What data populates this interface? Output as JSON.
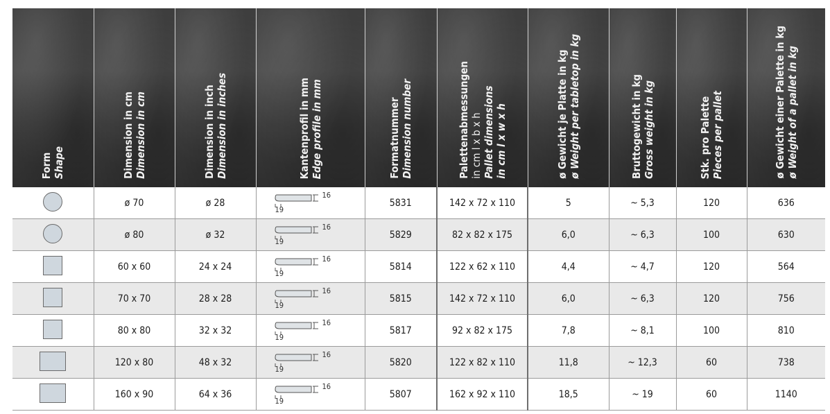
{
  "headers": [
    {
      "de": "Form",
      "en": "Shape"
    },
    {
      "de": "Dimension in cm",
      "en": "Dimension in cm"
    },
    {
      "de": "Dimension in inch",
      "en": "Dimension in inches"
    },
    {
      "de": "Kantenprofil in mm",
      "en": "Edge profile in mm"
    },
    {
      "de": "Formatnummer",
      "en": "Dimension number"
    },
    {
      "de": "Palettenabmessungen",
      "de2": "in cm l x b x h",
      "en": "Pallet dimensions",
      "en2": "in cm l x w x h"
    },
    {
      "de": "ø Gewicht je Platte in kg",
      "en": "ø Weight per tabletop in kg"
    },
    {
      "de": "Bruttogewicht in kg",
      "en": "Gross weight in kg"
    },
    {
      "de": "Stk. pro Palette",
      "en": "Pieces per pallet"
    },
    {
      "de": "ø Gewicht einer Palette in kg",
      "en": "ø Weight of a pallet in kg"
    }
  ],
  "edge_profile": {
    "thickness": "16",
    "rim": "19"
  },
  "rows": [
    {
      "shape": "circle",
      "cm": "ø 70",
      "inch": "ø 28",
      "number": "5831",
      "pallet": "142 x 72 x 110",
      "weight": "5",
      "gross": "~ 5,3",
      "pieces": "120",
      "pallet_weight": "636"
    },
    {
      "shape": "circle",
      "cm": "ø 80",
      "inch": "ø 32",
      "number": "5829",
      "pallet": "82 x 82 x 175",
      "weight": "6,0",
      "gross": "~ 6,3",
      "pieces": "100",
      "pallet_weight": "630"
    },
    {
      "shape": "square",
      "cm": "60 x 60",
      "inch": "24 x 24",
      "number": "5814",
      "pallet": "122 x 62 x 110",
      "weight": "4,4",
      "gross": "~ 4,7",
      "pieces": "120",
      "pallet_weight": "564"
    },
    {
      "shape": "square",
      "cm": "70 x 70",
      "inch": "28 x 28",
      "number": "5815",
      "pallet": "142 x 72 x 110",
      "weight": "6,0",
      "gross": "~ 6,3",
      "pieces": "120",
      "pallet_weight": "756"
    },
    {
      "shape": "square",
      "cm": "80 x 80",
      "inch": "32 x 32",
      "number": "5817",
      "pallet": "92 x 82 x 175",
      "weight": "7,8",
      "gross": "~ 8,1",
      "pieces": "100",
      "pallet_weight": "810"
    },
    {
      "shape": "rectangle",
      "cm": "120 x 80",
      "inch": "48 x 32",
      "number": "5820",
      "pallet": "122 x 82 x 110",
      "weight": "11,8",
      "gross": "~ 12,3",
      "pieces": "60",
      "pallet_weight": "738"
    },
    {
      "shape": "rectangle",
      "cm": "160 x 90",
      "inch": "64 x 36",
      "number": "5807",
      "pallet": "162 x 92 x 110",
      "weight": "18,5",
      "gross": "~ 19",
      "pieces": "60",
      "pallet_weight": "1140"
    }
  ]
}
